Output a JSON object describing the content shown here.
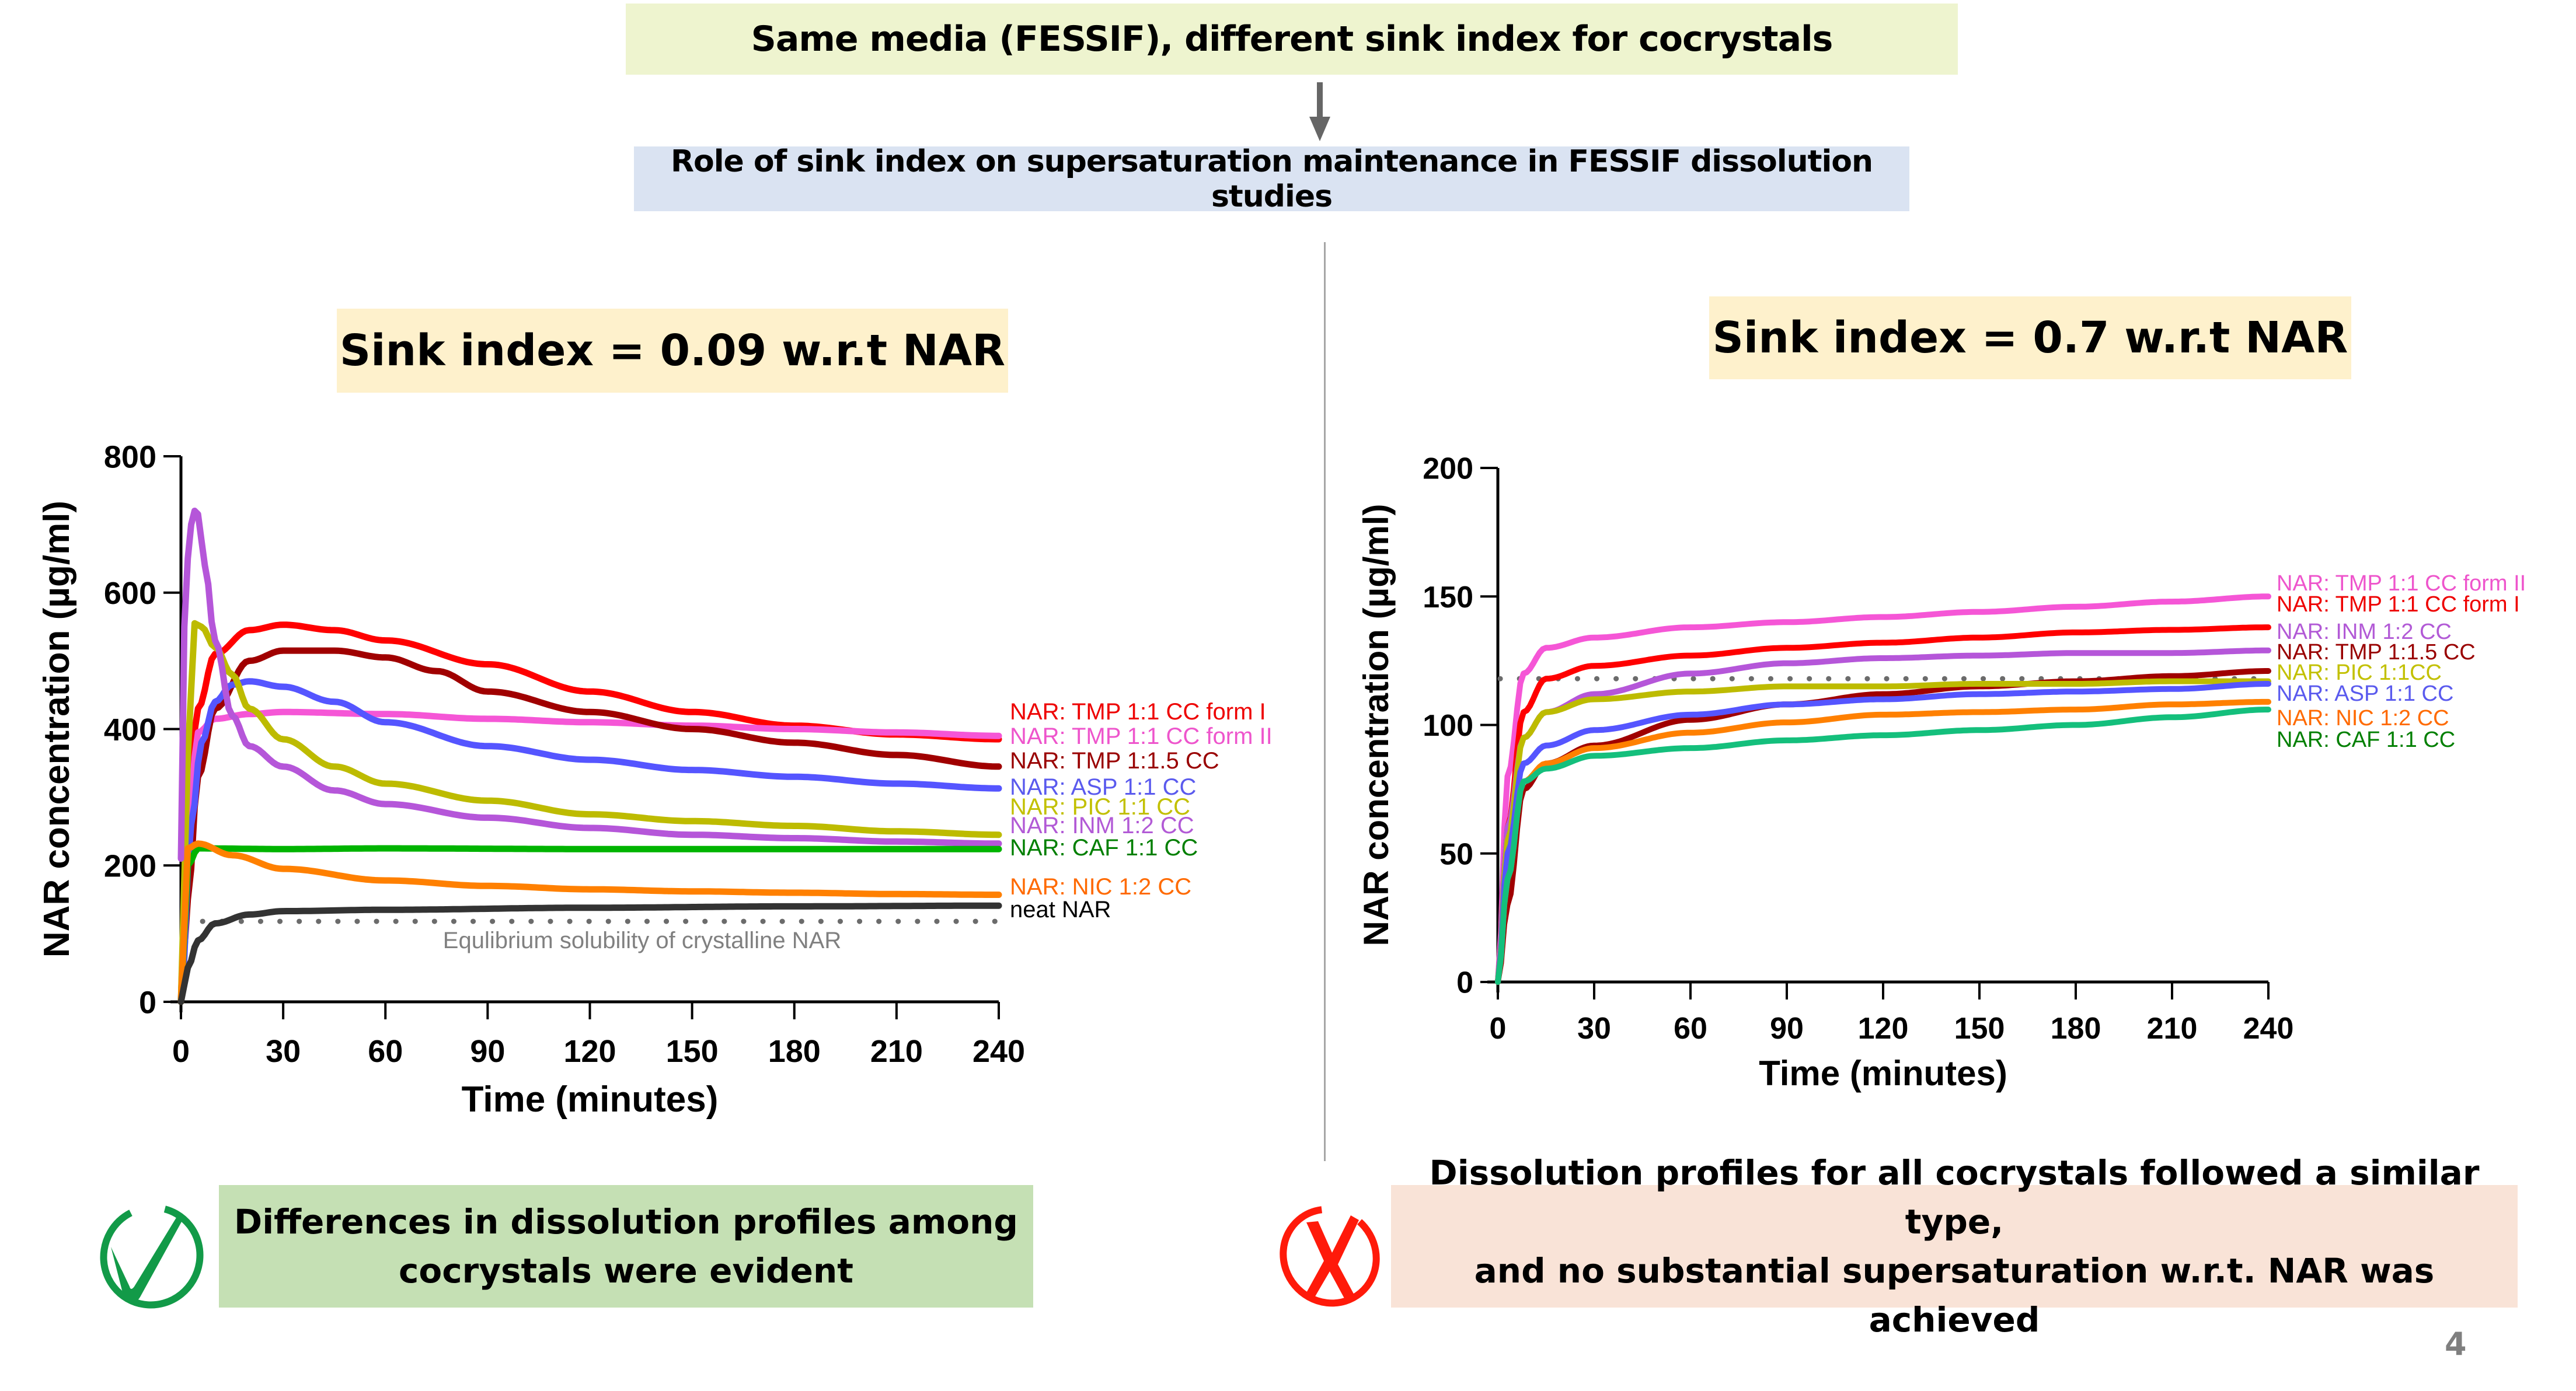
{
  "header": {
    "title": "Same media (FESSIF), different sink index for cocrystals",
    "subtitle": "Role of sink index on supersaturation maintenance in FESSIF dissolution studies"
  },
  "panels": {
    "left_title": "Sink index = 0.09 w.r.t NAR",
    "right_title": "Sink index = 0.7 w.r.t NAR"
  },
  "conclusions": {
    "left": "Differences in dissolution profiles among cocrystals were evident",
    "left_line1": "Differences in dissolution profiles among",
    "left_line2": "cocrystals were evident",
    "left_icon": "check-circle-icon",
    "right_line1": "Dissolution profiles for all cocrystals followed a similar type,",
    "right_line2": "and no substantial supersaturation w.r.t. NAR was achieved",
    "right_icon": "x-circle-icon"
  },
  "page_number": "4",
  "colors": {
    "top_box": "#eef4cf",
    "sub_box": "#dae3f2",
    "sink_box": "#fef1cc",
    "good_box": "#c5e0b4",
    "bad_box": "#f9e3d7",
    "check": "#129a48",
    "cross": "#ff1a0a"
  },
  "chart_data": [
    {
      "type": "line",
      "title": "Sink index = 0.09 w.r.t NAR",
      "xlabel": "Time (minutes)",
      "ylabel": "NAR concentration (µg/ml)",
      "xlim": [
        0,
        240
      ],
      "ylim": [
        0,
        800
      ],
      "xticks": [
        0,
        30,
        60,
        90,
        120,
        150,
        180,
        210,
        240
      ],
      "yticks": [
        0,
        200,
        400,
        600,
        800
      ],
      "grid": false,
      "legend_placement": "right",
      "reference_line": {
        "value": 118,
        "label": "Equlibrium solubility of crystalline NAR",
        "style": "dotted",
        "color": "#6b6b6b"
      },
      "series": [
        {
          "name": "NAR: TMP 1:1 CC form I",
          "color": "#ff0000",
          "legend_color": "#ee0000",
          "x": [
            0,
            2,
            5,
            10,
            20,
            30,
            45,
            60,
            90,
            120,
            150,
            180,
            210,
            240
          ],
          "values": [
            0,
            300,
            430,
            510,
            545,
            553,
            545,
            530,
            495,
            455,
            425,
            405,
            392,
            385
          ]
        },
        {
          "name": "NAR: TMP 1:1 CC form II",
          "color": "#f556d6",
          "legend_color": "#ee55cc",
          "x": [
            0,
            2,
            5,
            10,
            20,
            30,
            60,
            90,
            120,
            150,
            180,
            210,
            240
          ],
          "values": [
            0,
            250,
            395,
            415,
            422,
            425,
            422,
            415,
            410,
            405,
            400,
            395,
            390
          ]
        },
        {
          "name": "NAR: TMP 1:1.5 CC",
          "color": "#a00000",
          "legend_color": "#990000",
          "x": [
            0,
            2,
            5,
            10,
            20,
            30,
            45,
            60,
            75,
            90,
            120,
            150,
            180,
            210,
            240
          ],
          "values": [
            0,
            150,
            330,
            430,
            500,
            515,
            515,
            505,
            485,
            455,
            425,
            400,
            380,
            362,
            345
          ]
        },
        {
          "name": "NAR: ASP 1:1 CC",
          "color": "#5555ff",
          "legend_color": "#5a5aee",
          "x": [
            0,
            3,
            6,
            10,
            15,
            20,
            30,
            45,
            60,
            90,
            120,
            150,
            180,
            210,
            240
          ],
          "values": [
            0,
            260,
            380,
            440,
            465,
            470,
            462,
            440,
            410,
            375,
            355,
            340,
            330,
            320,
            313
          ]
        },
        {
          "name": "NAR: PIC 1:1 CC",
          "color": "#bdbb00",
          "legend_color": "#c2c000",
          "x": [
            0,
            2,
            4,
            6,
            10,
            15,
            20,
            30,
            45,
            60,
            90,
            120,
            150,
            180,
            210,
            240
          ],
          "values": [
            0,
            360,
            555,
            550,
            520,
            480,
            430,
            385,
            345,
            320,
            295,
            275,
            265,
            258,
            250,
            245
          ]
        },
        {
          "name": "NAR: INM 1:2 CC",
          "color": "#b556d9",
          "legend_color": "#b25ad6",
          "x": [
            0,
            1,
            2,
            3,
            4,
            5,
            7,
            10,
            15,
            20,
            30,
            45,
            60,
            90,
            120,
            150,
            180,
            210,
            240
          ],
          "values": [
            210,
            550,
            650,
            700,
            720,
            715,
            640,
            530,
            420,
            375,
            345,
            310,
            290,
            270,
            255,
            245,
            240,
            235,
            232
          ]
        },
        {
          "name": "NAR: CAF 1:1 CC",
          "color": "#00b400",
          "legend_color": "#007f00",
          "x": [
            0,
            2,
            5,
            30,
            60,
            120,
            180,
            240
          ],
          "values": [
            0,
            200,
            225,
            224,
            225,
            224,
            224,
            224
          ]
        },
        {
          "name": "NAR: NIC 1:2 CC",
          "color": "#ff8000",
          "legend_color": "#ff6a00",
          "x": [
            0,
            2,
            5,
            15,
            30,
            60,
            90,
            120,
            150,
            180,
            210,
            240
          ],
          "values": [
            0,
            225,
            232,
            215,
            195,
            178,
            170,
            165,
            162,
            160,
            158,
            157
          ]
        },
        {
          "name": "neat NAR",
          "color": "#333333",
          "legend_color": "#000000",
          "x": [
            0,
            2,
            5,
            10,
            20,
            30,
            60,
            120,
            180,
            240
          ],
          "values": [
            0,
            50,
            90,
            115,
            128,
            133,
            135,
            138,
            140,
            141
          ]
        }
      ]
    },
    {
      "type": "line",
      "title": "Sink index = 0.7 w.r.t NAR",
      "xlabel": "Time (minutes)",
      "ylabel": "NAR concentration (µg/ml)",
      "xlim": [
        0,
        240
      ],
      "ylim": [
        0,
        200
      ],
      "xticks": [
        0,
        30,
        60,
        90,
        120,
        150,
        180,
        210,
        240
      ],
      "yticks": [
        0,
        50,
        100,
        150,
        200
      ],
      "grid": false,
      "legend_placement": "right",
      "reference_line": {
        "value": 118,
        "label": "",
        "style": "dotted",
        "color": "#6b6b6b"
      },
      "series": [
        {
          "name": "NAR: TMP 1:1 CC form II",
          "color": "#f556d6",
          "legend_color": "#ee55cc",
          "x": [
            0,
            3,
            8,
            15,
            30,
            60,
            90,
            120,
            150,
            180,
            210,
            240
          ],
          "values": [
            0,
            80,
            120,
            130,
            134,
            138,
            140,
            142,
            144,
            146,
            148,
            150
          ]
        },
        {
          "name": "NAR: TMP 1:1 CC form I",
          "color": "#ff0000",
          "legend_color": "#ee0000",
          "x": [
            0,
            3,
            8,
            15,
            30,
            60,
            90,
            120,
            150,
            180,
            210,
            240
          ],
          "values": [
            0,
            60,
            105,
            118,
            123,
            127,
            130,
            132,
            134,
            136,
            137,
            138
          ]
        },
        {
          "name": "NAR: INM 1:2 CC",
          "color": "#b556d9",
          "legend_color": "#b25ad6",
          "x": [
            0,
            3,
            8,
            15,
            30,
            60,
            90,
            120,
            150,
            180,
            210,
            240
          ],
          "values": [
            0,
            60,
            95,
            105,
            112,
            120,
            124,
            126,
            127,
            128,
            128,
            129
          ]
        },
        {
          "name": "NAR: TMP 1:1.5 CC",
          "color": "#a00000",
          "legend_color": "#990000",
          "x": [
            0,
            3,
            8,
            15,
            30,
            60,
            90,
            120,
            150,
            180,
            210,
            240
          ],
          "values": [
            0,
            30,
            75,
            85,
            92,
            102,
            108,
            112,
            115,
            117,
            119,
            121
          ]
        },
        {
          "name": "NAR: PIC 1:1CC",
          "color": "#bdbb00",
          "legend_color": "#c2c000",
          "x": [
            0,
            3,
            8,
            15,
            30,
            60,
            90,
            120,
            150,
            180,
            210,
            240
          ],
          "values": [
            0,
            55,
            95,
            105,
            110,
            113,
            115,
            115,
            116,
            116,
            117,
            117
          ]
        },
        {
          "name": "NAR: ASP 1:1 CC",
          "color": "#5555ff",
          "legend_color": "#5a5aee",
          "x": [
            0,
            3,
            8,
            15,
            30,
            60,
            90,
            120,
            150,
            180,
            210,
            240
          ],
          "values": [
            0,
            50,
            85,
            92,
            98,
            104,
            108,
            110,
            112,
            113,
            114,
            116
          ]
        },
        {
          "name": "NAR: NIC 1:2 CC",
          "color": "#ff8000",
          "legend_color": "#ff6a00",
          "x": [
            0,
            3,
            8,
            15,
            30,
            60,
            90,
            120,
            150,
            180,
            210,
            240
          ],
          "values": [
            0,
            40,
            78,
            85,
            91,
            97,
            101,
            104,
            105,
            106,
            108,
            109
          ]
        },
        {
          "name": "NAR: CAF 1:1 CC",
          "color": "#14bf7c",
          "legend_color": "#007f00",
          "x": [
            0,
            3,
            8,
            15,
            30,
            60,
            90,
            120,
            150,
            180,
            210,
            240
          ],
          "values": [
            0,
            40,
            78,
            83,
            88,
            91,
            94,
            96,
            98,
            100,
            103,
            106
          ]
        }
      ]
    }
  ]
}
